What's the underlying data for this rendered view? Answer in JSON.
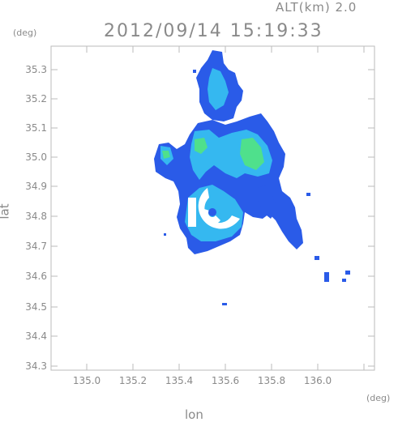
{
  "header": {
    "altitude": "ALT(km) 2.0",
    "timestamp": "2012/09/14 15:19:33"
  },
  "axes": {
    "x_unit": "(deg)",
    "y_unit": "(deg)",
    "x_label": "lon",
    "y_label": "lat",
    "x_ticks": [
      "135.0",
      "135.2",
      "135.4",
      "135.6",
      "135.8",
      "136.0"
    ],
    "y_ticks": [
      "35.3",
      "35.2",
      "35.1",
      "35.0",
      "34.9",
      "34.8",
      "34.7",
      "34.6",
      "34.5",
      "34.4",
      "34.3"
    ]
  },
  "colors": {
    "frame": "#bbbbbb",
    "echo_low": "#2a5be8",
    "echo_mid": "#35b8f0",
    "echo_high": "#4fe08c",
    "radar_hole": "#ffffff"
  }
}
